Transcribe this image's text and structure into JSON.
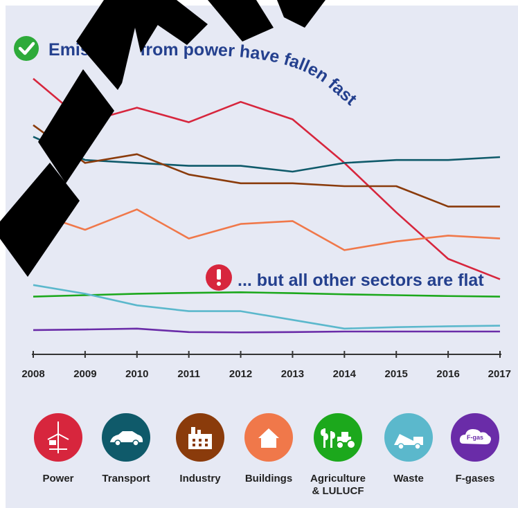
{
  "chart_data": {
    "type": "line",
    "x": [
      2008,
      2009,
      2010,
      2011,
      2012,
      2013,
      2014,
      2015,
      2016,
      2017
    ],
    "x_tick_labels": [
      "2008",
      "2009",
      "2010",
      "2011",
      "2012",
      "2013",
      "2014",
      "2015",
      "2016",
      "2017"
    ],
    "y_axis_labels": "none",
    "grid": false,
    "ylim": [
      0,
      100
    ],
    "annotations": {
      "power_note": "Emissions from power have fallen fast",
      "others_note": "... but all other sectors are flat"
    },
    "series": [
      {
        "name": "Power",
        "color": "#d7263d",
        "values": [
          92,
          77,
          82,
          77,
          84,
          78,
          63,
          46,
          30,
          23
        ]
      },
      {
        "name": "Transport",
        "color": "#0f5a6a",
        "values": [
          72,
          64,
          63,
          62,
          62,
          60,
          63,
          64,
          64,
          65
        ]
      },
      {
        "name": "Industry",
        "color": "#8a3b0b",
        "values": [
          76,
          63,
          66,
          59,
          56,
          56,
          55,
          55,
          48,
          48
        ]
      },
      {
        "name": "Buildings",
        "color": "#f0784a",
        "values": [
          46,
          40,
          47,
          37,
          42,
          43,
          33,
          36,
          38,
          37
        ]
      },
      {
        "name": "Agriculture & LULUCF",
        "color": "#1ca81c",
        "values": [
          17,
          17.5,
          18,
          18.3,
          18.5,
          18.2,
          17.8,
          17.5,
          17.2,
          17
        ]
      },
      {
        "name": "Waste",
        "color": "#5bb8cc",
        "values": [
          21,
          18,
          14,
          12,
          12,
          9,
          6,
          6.5,
          6.8,
          7
        ]
      },
      {
        "name": "F-gases",
        "color": "#6a2ca8",
        "values": [
          5.5,
          5.7,
          6,
          4.8,
          4.7,
          4.8,
          5,
          5,
          5,
          5
        ]
      }
    ]
  },
  "legend": [
    {
      "label": "Power",
      "color": "#d7263d",
      "icon": "wind-turbine-icon"
    },
    {
      "label": "Transport",
      "color": "#0f5a6a",
      "icon": "car-icon"
    },
    {
      "label": "Industry",
      "color": "#8a3b0b",
      "icon": "factory-icon"
    },
    {
      "label": "Buildings",
      "color": "#f0784a",
      "icon": "house-icon"
    },
    {
      "label": "Agriculture\n& LULUCF",
      "color": "#1ca81c",
      "icon": "tractor-wheat-icon"
    },
    {
      "label": "Waste",
      "color": "#5bb8cc",
      "icon": "dump-truck-icon"
    },
    {
      "label": "F-gases",
      "color": "#6a2ca8",
      "icon": "gas-cloud-icon",
      "icon_text": "F-gas"
    }
  ],
  "colors": {
    "background": "#e6e9f4",
    "annotation_text": "#24408e",
    "check": "#2eaa3a",
    "alert": "#d7263d",
    "watermark": "#000000"
  }
}
